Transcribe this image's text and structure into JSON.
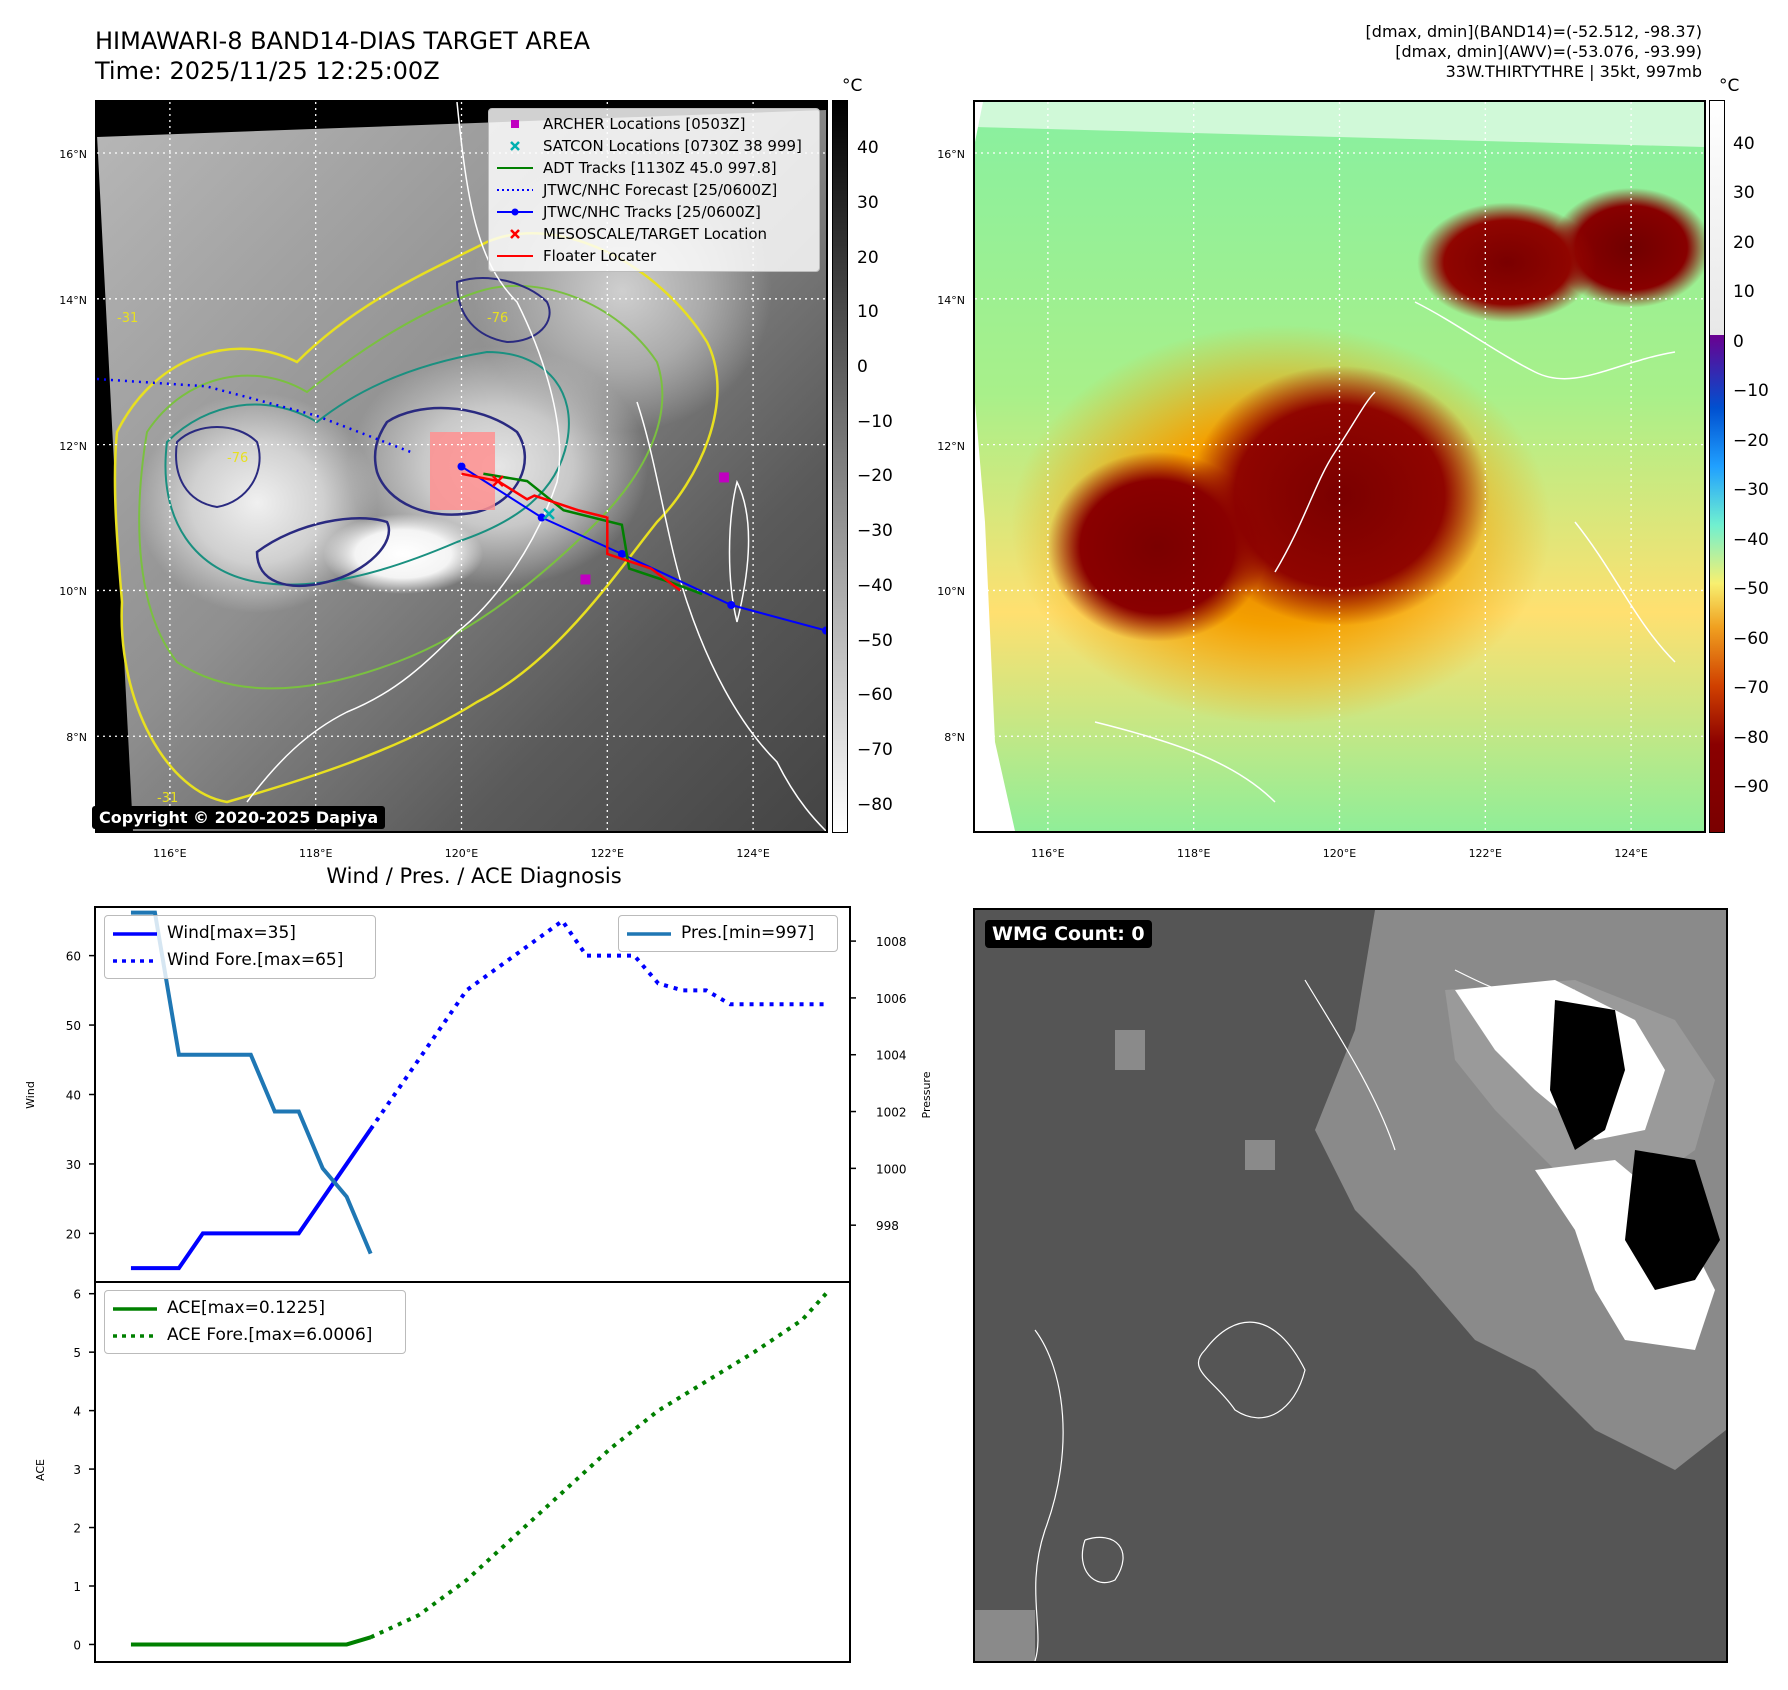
{
  "header": {
    "title_line1": "HIMAWARI-8 BAND14-DIAS TARGET AREA",
    "title_line2": "Time: 2025/11/25 12:25:00Z",
    "info_line1": "[dmax, dmin](BAND14)=(-52.512, -98.37)",
    "info_line2": "[dmax, dmin](AWV)=(-53.076, -93.99)",
    "info_line3": "33W.THIRTYTHRE | 35kt, 997mb"
  },
  "map_axes": {
    "lon_labels": [
      "116°E",
      "118°E",
      "120°E",
      "122°E",
      "124°E"
    ],
    "lat_labels": [
      "16°N",
      "14°N",
      "12°N",
      "10°N",
      "8°N"
    ],
    "lon_range": [
      115.0,
      125.0
    ],
    "lat_range": [
      6.7,
      16.7
    ]
  },
  "ir_panel": {
    "colorbar_unit": "°C",
    "colorbar_ticks": [
      "40",
      "30",
      "20",
      "10",
      "0",
      "−10",
      "−20",
      "−30",
      "−40",
      "−50",
      "−60",
      "−70",
      "−80"
    ],
    "copyright": "Copyright © 2020-2025 Dapiya",
    "legend": [
      {
        "label": "ARCHER Locations [0503Z]",
        "marker": "square",
        "color": "#c000c0"
      },
      {
        "label": "SATCON Locations [0730Z 38 999]",
        "marker": "x",
        "color": "#00b0b0"
      },
      {
        "label": "ADT Tracks [1130Z 45.0 997.8]",
        "marker": "line",
        "color": "#008000"
      },
      {
        "label": "JTWC/NHC Forecast [25/0600Z]",
        "marker": "dotted",
        "color": "#0000ff"
      },
      {
        "label": "JTWC/NHC Tracks [25/0600Z]",
        "marker": "line-dot",
        "color": "#0000ff"
      },
      {
        "label": "MESOSCALE/TARGET Location",
        "marker": "x",
        "color": "#ff0000"
      },
      {
        "label": "Floater Locater",
        "marker": "line",
        "color": "#ff0000"
      }
    ],
    "contour_labels": [
      "-31",
      "-76",
      "-76",
      "-31"
    ],
    "tracks": {
      "jtwc_forecast": [
        [
          115.0,
          12.9
        ],
        [
          116.5,
          12.8
        ],
        [
          118.0,
          12.4
        ],
        [
          119.3,
          11.9
        ]
      ],
      "jtwc_track": [
        [
          120.0,
          11.7
        ],
        [
          121.1,
          11.0
        ],
        [
          122.2,
          10.5
        ],
        [
          123.7,
          9.8
        ],
        [
          125.0,
          9.45
        ]
      ],
      "adt_track": [
        [
          120.3,
          11.6
        ],
        [
          120.9,
          11.5
        ],
        [
          121.4,
          11.1
        ],
        [
          122.2,
          10.9
        ],
        [
          122.3,
          10.3
        ],
        [
          122.9,
          10.1
        ],
        [
          123.3,
          9.95
        ]
      ],
      "floater": [
        [
          120.0,
          11.6
        ],
        [
          120.5,
          11.5
        ],
        [
          120.9,
          11.25
        ],
        [
          121.0,
          11.3
        ],
        [
          121.6,
          11.1
        ],
        [
          122.0,
          11.0
        ],
        [
          122.0,
          10.5
        ],
        [
          122.6,
          10.3
        ],
        [
          123.0,
          10.0
        ]
      ],
      "archer": [
        [
          123.6,
          11.55
        ],
        [
          121.7,
          10.15
        ]
      ],
      "satcon": [
        [
          121.2,
          11.05
        ]
      ],
      "target": [
        [
          120.5,
          11.5
        ]
      ]
    }
  },
  "wv_panel": {
    "colorbar_unit": "°C",
    "colorbar_ticks": [
      "40",
      "30",
      "20",
      "10",
      "0",
      "−10",
      "−20",
      "−30",
      "−40",
      "−50",
      "−60",
      "−70",
      "−80",
      "−90"
    ]
  },
  "diagnosis": {
    "title": "Wind / Pres. / ACE Diagnosis",
    "wind_ylabel": "Wind",
    "pres_ylabel": "Pressure",
    "ace_ylabel": "ACE",
    "wind_legend": [
      "Wind[max=35]",
      "Wind Fore.[max=65]"
    ],
    "pres_legend": [
      "Pres.[min=997]"
    ],
    "ace_legend": [
      "ACE[max=0.1225]",
      "ACE Fore.[max=6.0006]"
    ]
  },
  "chart_data": [
    {
      "type": "line",
      "title": "Wind / Pres. / ACE Diagnosis",
      "ylabel": "Wind",
      "ylim": [
        13,
        67
      ],
      "y_ticks": [
        20,
        30,
        40,
        50,
        60
      ],
      "y2label": "Pressure",
      "y2lim": [
        996.0,
        1009.2
      ],
      "y2_ticks": [
        998,
        1000,
        1002,
        1004,
        1006,
        1008
      ],
      "xlim": [
        -0.5,
        31.0
      ],
      "series": [
        {
          "name": "Wind[max=35]",
          "color": "#0000ff",
          "style": "solid",
          "axis": "left",
          "x": [
            1,
            2,
            3,
            4,
            5,
            6,
            7,
            8,
            9,
            10,
            11
          ],
          "y": [
            15,
            15,
            15,
            20,
            20,
            20,
            20,
            20,
            25,
            30,
            35
          ]
        },
        {
          "name": "Wind Fore.[max=65]",
          "color": "#0000ff",
          "style": "dotted",
          "axis": "left",
          "x": [
            11,
            12,
            13,
            14,
            15,
            16,
            17,
            18,
            19,
            20,
            21,
            22,
            23,
            24,
            25,
            26,
            27,
            28,
            29,
            30
          ],
          "y": [
            35,
            40,
            45,
            50,
            55,
            57.5,
            60,
            62.5,
            65,
            60,
            60,
            60,
            56,
            55,
            55,
            53,
            53,
            53,
            53,
            53
          ]
        },
        {
          "name": "Pres.[min=997]",
          "color": "#1f77b4",
          "style": "solid",
          "axis": "right",
          "x": [
            1,
            2,
            3,
            4,
            5,
            6,
            7,
            8,
            9,
            10,
            11
          ],
          "y": [
            1009,
            1009,
            1004,
            1004,
            1004,
            1004,
            1002,
            1002,
            1000,
            999,
            997
          ]
        }
      ]
    },
    {
      "type": "line",
      "ylabel": "ACE",
      "ylim": [
        -0.3,
        6.2
      ],
      "y_ticks": [
        0,
        1,
        2,
        3,
        4,
        5,
        6
      ],
      "xlim": [
        -0.5,
        31.0
      ],
      "series": [
        {
          "name": "ACE[max=0.1225]",
          "color": "#008000",
          "style": "solid",
          "x": [
            1,
            2,
            3,
            4,
            5,
            6,
            7,
            8,
            9,
            10,
            11
          ],
          "y": [
            0,
            0,
            0,
            0,
            0,
            0,
            0,
            0,
            0,
            0,
            0.1225
          ]
        },
        {
          "name": "ACE Fore.[max=6.0006]",
          "color": "#008000",
          "style": "dotted",
          "x": [
            11,
            13,
            15,
            17,
            19,
            21,
            23,
            25,
            27,
            29,
            30
          ],
          "y": [
            0.1225,
            0.5,
            1.1,
            1.85,
            2.6,
            3.35,
            4.0,
            4.5,
            5.0,
            5.55,
            6.0006
          ]
        }
      ]
    }
  ],
  "wmg_panel": {
    "label": "WMG Count: 0"
  }
}
